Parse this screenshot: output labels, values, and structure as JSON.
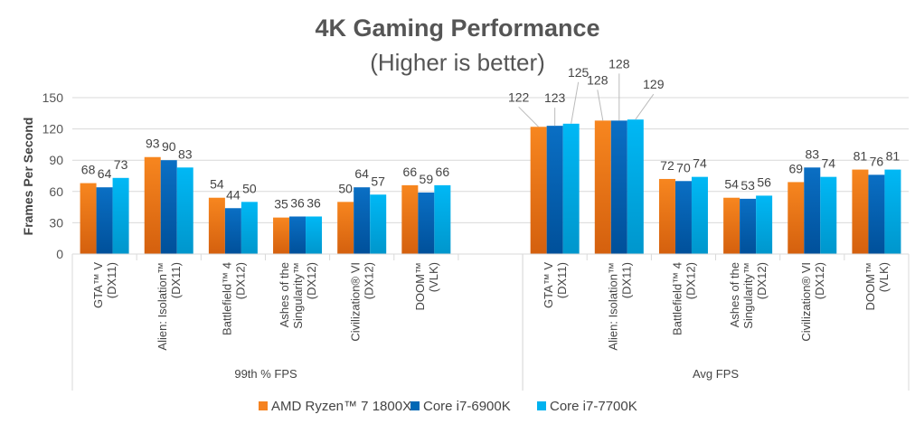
{
  "chart_data": {
    "type": "bar",
    "title": "4K Gaming Performance",
    "subtitle": "(Higher is better)",
    "ylabel": "Frames Per Second",
    "xlabel": "",
    "ylim": [
      0,
      150
    ],
    "yticks": [
      0,
      30,
      60,
      90,
      120,
      150
    ],
    "grid": true,
    "legend_position": "bottom",
    "groups": [
      {
        "label": "99th % FPS",
        "categories": [
          [
            "GTA™ V",
            "(DX11)"
          ],
          [
            "Alien: Isolation™",
            "(DX11)"
          ],
          [
            "Battlefield™ 4",
            "(DX12)"
          ],
          [
            "Ashes of the",
            "Singularity™",
            "(DX12)"
          ],
          [
            "Civilization® VI",
            "(DX12)"
          ],
          [
            "DOOM™",
            "(VLK)"
          ]
        ],
        "series_values": [
          [
            68,
            93,
            54,
            35,
            50,
            66
          ],
          [
            64,
            90,
            44,
            36,
            64,
            59
          ],
          [
            73,
            83,
            50,
            36,
            57,
            66
          ]
        ]
      },
      {
        "label": "Avg FPS",
        "categories": [
          [
            "GTA™ V",
            "(DX11)"
          ],
          [
            "Alien: Isolation™",
            "(DX11)"
          ],
          [
            "Battlefield™ 4",
            "(DX12)"
          ],
          [
            "Ashes of the",
            "Singularity™",
            "(DX12)"
          ],
          [
            "Civilization® VI",
            "(DX12)"
          ],
          [
            "DOOM™",
            "(VLK)"
          ]
        ],
        "series_values": [
          [
            122,
            128,
            72,
            54,
            69,
            81
          ],
          [
            123,
            128,
            70,
            53,
            83,
            76
          ],
          [
            125,
            129,
            74,
            56,
            74,
            81
          ]
        ]
      }
    ],
    "series": [
      {
        "name": "AMD Ryzen™ 7 1800X",
        "color": "#f58220"
      },
      {
        "name": "Core i7-6900K",
        "color": "#0068b5"
      },
      {
        "name": "Core i7-7700K",
        "color": "#00b2ef"
      }
    ]
  }
}
